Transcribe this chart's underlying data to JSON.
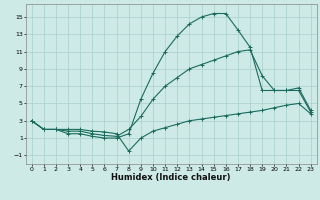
{
  "xlabel": "Humidex (Indice chaleur)",
  "bg_color": "#ceeae7",
  "grid_color": "#aacfcc",
  "line_color": "#1a6b5c",
  "xlim": [
    -0.5,
    23.5
  ],
  "ylim": [
    -2.0,
    16.5
  ],
  "xticks": [
    0,
    1,
    2,
    3,
    4,
    5,
    6,
    7,
    8,
    9,
    10,
    11,
    12,
    13,
    14,
    15,
    16,
    17,
    18,
    19,
    20,
    21,
    22,
    23
  ],
  "yticks": [
    -1,
    1,
    3,
    5,
    7,
    9,
    11,
    13,
    15
  ],
  "s1y": [
    3.0,
    2.0,
    2.0,
    1.5,
    1.5,
    1.2,
    1.0,
    1.0,
    1.5,
    5.5,
    8.5,
    11.0,
    12.8,
    14.2,
    15.0,
    15.4,
    15.4,
    13.5,
    11.5,
    6.5,
    6.5,
    6.5,
    6.5,
    4.0
  ],
  "s2y": [
    3.0,
    2.0,
    2.0,
    1.8,
    1.8,
    1.5,
    1.3,
    1.2,
    2.0,
    3.5,
    5.5,
    7.0,
    8.0,
    9.0,
    9.5,
    10.0,
    10.5,
    11.0,
    11.2,
    8.2,
    6.5,
    6.5,
    6.8,
    4.2
  ],
  "s3y": [
    3.0,
    2.0,
    2.0,
    2.0,
    2.0,
    1.8,
    1.7,
    1.5,
    -0.5,
    1.0,
    1.8,
    2.2,
    2.6,
    3.0,
    3.2,
    3.4,
    3.6,
    3.8,
    4.0,
    4.2,
    4.5,
    4.8,
    5.0,
    3.8
  ]
}
